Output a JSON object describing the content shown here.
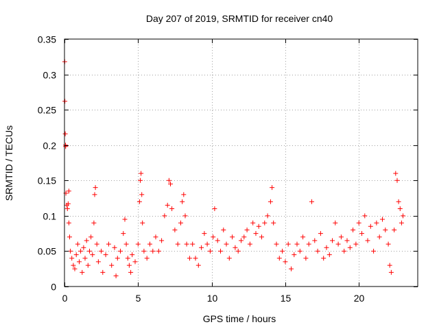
{
  "chart_data": {
    "type": "scatter",
    "title": "Day 207 of 2019, SRMTID for receiver cn40",
    "xlabel": "GPS time / hours",
    "ylabel": "SRMTID / TECUs",
    "xlim": [
      0,
      24
    ],
    "ylim": [
      0,
      0.35
    ],
    "xticks": [
      0,
      5,
      10,
      15,
      20
    ],
    "xtick_labels": [
      "0",
      "5",
      "10",
      "15",
      "20"
    ],
    "yticks": [
      0,
      0.05,
      0.1,
      0.15,
      0.2,
      0.25,
      0.3,
      0.35
    ],
    "ytick_labels": [
      "0",
      "0.05",
      "0.1",
      "0.15",
      "0.2",
      "0.25",
      "0.3",
      "0.35"
    ],
    "grid": true,
    "marker": "plus",
    "marker_color": "#ff0000",
    "series": [
      {
        "name": "SRMTID",
        "points": [
          [
            0.02,
            0.318
          ],
          [
            0.03,
            0.262
          ],
          [
            0.05,
            0.216
          ],
          [
            0.07,
            0.2
          ],
          [
            0.08,
            0.198
          ],
          [
            0.1,
            0.132
          ],
          [
            0.15,
            0.115
          ],
          [
            0.2,
            0.11
          ],
          [
            0.25,
            0.117
          ],
          [
            0.3,
            0.135
          ],
          [
            0.3,
            0.09
          ],
          [
            0.35,
            0.07
          ],
          [
            0.4,
            0.05
          ],
          [
            0.5,
            0.04
          ],
          [
            0.6,
            0.03
          ],
          [
            0.7,
            0.025
          ],
          [
            0.8,
            0.045
          ],
          [
            0.9,
            0.06
          ],
          [
            1.0,
            0.035
          ],
          [
            1.1,
            0.05
          ],
          [
            1.2,
            0.02
          ],
          [
            1.3,
            0.055
          ],
          [
            1.4,
            0.04
          ],
          [
            1.5,
            0.065
          ],
          [
            1.6,
            0.03
          ],
          [
            1.7,
            0.05
          ],
          [
            1.8,
            0.07
          ],
          [
            1.9,
            0.045
          ],
          [
            2.0,
            0.09
          ],
          [
            2.05,
            0.13
          ],
          [
            2.1,
            0.14
          ],
          [
            2.2,
            0.06
          ],
          [
            2.3,
            0.035
          ],
          [
            2.5,
            0.05
          ],
          [
            2.6,
            0.02
          ],
          [
            2.8,
            0.045
          ],
          [
            3.0,
            0.06
          ],
          [
            3.2,
            0.03
          ],
          [
            3.4,
            0.055
          ],
          [
            3.5,
            0.015
          ],
          [
            3.6,
            0.04
          ],
          [
            3.8,
            0.05
          ],
          [
            4.0,
            0.075
          ],
          [
            4.1,
            0.095
          ],
          [
            4.2,
            0.06
          ],
          [
            4.3,
            0.04
          ],
          [
            4.4,
            0.03
          ],
          [
            4.5,
            0.02
          ],
          [
            4.6,
            0.045
          ],
          [
            4.8,
            0.035
          ],
          [
            5.0,
            0.06
          ],
          [
            5.1,
            0.12
          ],
          [
            5.15,
            0.15
          ],
          [
            5.2,
            0.16
          ],
          [
            5.25,
            0.13
          ],
          [
            5.3,
            0.09
          ],
          [
            5.4,
            0.05
          ],
          [
            5.6,
            0.04
          ],
          [
            5.8,
            0.06
          ],
          [
            6.0,
            0.05
          ],
          [
            6.2,
            0.07
          ],
          [
            6.4,
            0.05
          ],
          [
            6.6,
            0.065
          ],
          [
            6.8,
            0.1
          ],
          [
            7.0,
            0.115
          ],
          [
            7.1,
            0.15
          ],
          [
            7.2,
            0.145
          ],
          [
            7.3,
            0.11
          ],
          [
            7.5,
            0.08
          ],
          [
            7.7,
            0.06
          ],
          [
            7.9,
            0.09
          ],
          [
            8.0,
            0.12
          ],
          [
            8.1,
            0.13
          ],
          [
            8.2,
            0.1
          ],
          [
            8.3,
            0.06
          ],
          [
            8.5,
            0.04
          ],
          [
            8.7,
            0.06
          ],
          [
            8.9,
            0.04
          ],
          [
            9.1,
            0.03
          ],
          [
            9.3,
            0.055
          ],
          [
            9.5,
            0.075
          ],
          [
            9.7,
            0.06
          ],
          [
            9.9,
            0.05
          ],
          [
            10.1,
            0.07
          ],
          [
            10.2,
            0.11
          ],
          [
            10.4,
            0.065
          ],
          [
            10.6,
            0.05
          ],
          [
            10.8,
            0.08
          ],
          [
            11.0,
            0.06
          ],
          [
            11.2,
            0.04
          ],
          [
            11.4,
            0.07
          ],
          [
            11.6,
            0.055
          ],
          [
            11.8,
            0.05
          ],
          [
            12.0,
            0.065
          ],
          [
            12.2,
            0.07
          ],
          [
            12.4,
            0.08
          ],
          [
            12.6,
            0.06
          ],
          [
            12.8,
            0.09
          ],
          [
            13.0,
            0.075
          ],
          [
            13.2,
            0.085
          ],
          [
            13.4,
            0.07
          ],
          [
            13.6,
            0.09
          ],
          [
            13.8,
            0.1
          ],
          [
            14.0,
            0.12
          ],
          [
            14.1,
            0.14
          ],
          [
            14.2,
            0.09
          ],
          [
            14.4,
            0.06
          ],
          [
            14.6,
            0.04
          ],
          [
            14.8,
            0.05
          ],
          [
            15.0,
            0.035
          ],
          [
            15.2,
            0.06
          ],
          [
            15.4,
            0.025
          ],
          [
            15.6,
            0.045
          ],
          [
            15.8,
            0.06
          ],
          [
            16.0,
            0.05
          ],
          [
            16.2,
            0.07
          ],
          [
            16.4,
            0.04
          ],
          [
            16.6,
            0.06
          ],
          [
            16.8,
            0.12
          ],
          [
            17.0,
            0.065
          ],
          [
            17.2,
            0.05
          ],
          [
            17.4,
            0.075
          ],
          [
            17.6,
            0.04
          ],
          [
            17.8,
            0.055
          ],
          [
            18.0,
            0.045
          ],
          [
            18.2,
            0.065
          ],
          [
            18.4,
            0.09
          ],
          [
            18.6,
            0.06
          ],
          [
            18.8,
            0.07
          ],
          [
            19.0,
            0.05
          ],
          [
            19.2,
            0.065
          ],
          [
            19.4,
            0.055
          ],
          [
            19.6,
            0.08
          ],
          [
            19.8,
            0.06
          ],
          [
            20.0,
            0.09
          ],
          [
            20.2,
            0.075
          ],
          [
            20.4,
            0.1
          ],
          [
            20.6,
            0.065
          ],
          [
            20.8,
            0.085
          ],
          [
            21.0,
            0.05
          ],
          [
            21.2,
            0.09
          ],
          [
            21.4,
            0.07
          ],
          [
            21.6,
            0.095
          ],
          [
            21.8,
            0.08
          ],
          [
            22.0,
            0.06
          ],
          [
            22.1,
            0.03
          ],
          [
            22.2,
            0.02
          ],
          [
            22.4,
            0.08
          ],
          [
            22.5,
            0.16
          ],
          [
            22.6,
            0.15
          ],
          [
            22.7,
            0.12
          ],
          [
            22.8,
            0.11
          ],
          [
            22.9,
            0.09
          ],
          [
            23.0,
            0.1
          ]
        ]
      }
    ]
  }
}
